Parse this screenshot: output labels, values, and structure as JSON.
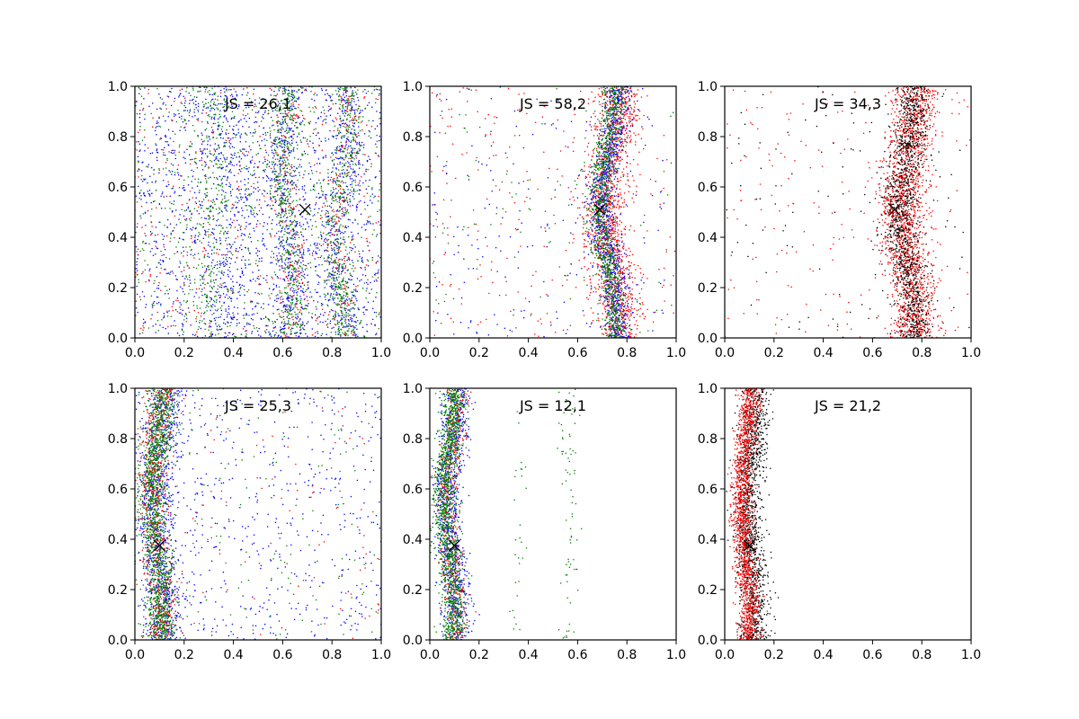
{
  "chart_data": [
    {
      "type": "scatter",
      "annotation": "JS = 26,1",
      "xlim": [
        0,
        1
      ],
      "ylim": [
        0,
        1
      ],
      "xticks": [
        "0.0",
        "0.2",
        "0.4",
        "0.6",
        "0.8",
        "1.0"
      ],
      "yticks": [
        "0.0",
        "0.2",
        "0.4",
        "0.6",
        "0.8",
        "1.0"
      ],
      "marker": {
        "x": 0.69,
        "y": 0.51,
        "symbol": "x",
        "color": "#000000"
      },
      "series": [
        {
          "color": "#0000ff",
          "distribution": [
            {
              "kind": "uniform",
              "count": 1500
            },
            {
              "kind": "band",
              "center": 0.38,
              "width": 0.05,
              "amp": 0.02,
              "count": 250
            },
            {
              "kind": "band",
              "center": 0.62,
              "width": 0.035,
              "amp": 0.025,
              "count": 350
            },
            {
              "kind": "band",
              "center": 0.84,
              "width": 0.035,
              "amp": 0.03,
              "count": 350
            }
          ]
        },
        {
          "color": "#ff0000",
          "distribution": [
            {
              "kind": "uniform",
              "count": 450
            },
            {
              "kind": "band",
              "center": 0.62,
              "width": 0.03,
              "amp": 0.025,
              "count": 150
            },
            {
              "kind": "band",
              "center": 0.84,
              "width": 0.03,
              "amp": 0.03,
              "count": 150
            }
          ]
        },
        {
          "color": "#008000",
          "distribution": [
            {
              "kind": "uniform",
              "count": 700
            },
            {
              "kind": "band",
              "center": 0.32,
              "width": 0.04,
              "amp": 0.02,
              "count": 300
            },
            {
              "kind": "band",
              "center": 0.62,
              "width": 0.03,
              "amp": 0.025,
              "count": 450
            },
            {
              "kind": "band",
              "center": 0.84,
              "width": 0.03,
              "amp": 0.03,
              "count": 450
            }
          ]
        }
      ]
    },
    {
      "type": "scatter",
      "annotation": "JS = 58,2",
      "xlim": [
        0,
        1
      ],
      "ylim": [
        0,
        1
      ],
      "xticks": [
        "0.0",
        "0.2",
        "0.4",
        "0.6",
        "0.8",
        "1.0"
      ],
      "yticks": [
        "0.0",
        "0.2",
        "0.4",
        "0.6",
        "0.8",
        "1.0"
      ],
      "marker": {
        "x": 0.69,
        "y": 0.51,
        "symbol": "x",
        "color": "#000000"
      },
      "series": [
        {
          "color": "#ff0000",
          "distribution": [
            {
              "kind": "uniform",
              "count": 250
            },
            {
              "kind": "band",
              "center": 0.74,
              "width": 0.045,
              "amp": 0.03,
              "count": 1500
            }
          ]
        },
        {
          "color": "#0000ff",
          "distribution": [
            {
              "kind": "uniform",
              "count": 200
            },
            {
              "kind": "band",
              "center": 0.73,
              "width": 0.03,
              "amp": 0.03,
              "count": 1000
            }
          ]
        },
        {
          "color": "#008000",
          "distribution": [
            {
              "kind": "uniform",
              "count": 120
            },
            {
              "kind": "band",
              "center": 0.72,
              "width": 0.025,
              "amp": 0.03,
              "count": 1000
            }
          ]
        }
      ]
    },
    {
      "type": "scatter",
      "annotation": "JS = 34,3",
      "xlim": [
        0,
        1
      ],
      "ylim": [
        0,
        1
      ],
      "xticks": [
        "0.0",
        "0.2",
        "0.4",
        "0.6",
        "0.8",
        "1.0"
      ],
      "yticks": [
        "0.0",
        "0.2",
        "0.4",
        "0.6",
        "0.8",
        "1.0"
      ],
      "marker": {
        "x": 0.69,
        "y": 0.51,
        "symbol": "x",
        "color": "#000000"
      },
      "series": [
        {
          "color": "#ff0000",
          "distribution": [
            {
              "kind": "uniform",
              "count": 220
            },
            {
              "kind": "band",
              "center": 0.75,
              "width": 0.045,
              "amp": 0.03,
              "count": 1800
            }
          ]
        },
        {
          "color": "#000000",
          "distribution": [
            {
              "kind": "uniform",
              "count": 120
            },
            {
              "kind": "band",
              "center": 0.74,
              "width": 0.035,
              "amp": 0.03,
              "count": 1200
            }
          ]
        }
      ]
    },
    {
      "type": "scatter",
      "annotation": "JS = 25,3",
      "xlim": [
        0,
        1
      ],
      "ylim": [
        0,
        1
      ],
      "xticks": [
        "0.0",
        "0.2",
        "0.4",
        "0.6",
        "0.8",
        "1.0"
      ],
      "yticks": [
        "0.0",
        "0.2",
        "0.4",
        "0.6",
        "0.8",
        "1.0"
      ],
      "marker": {
        "x": 0.1,
        "y": 0.375,
        "symbol": "x",
        "color": "#000000"
      },
      "series": [
        {
          "color": "#0000ff",
          "distribution": [
            {
              "kind": "uniform",
              "count": 600
            },
            {
              "kind": "band",
              "center": 0.1,
              "width": 0.04,
              "amp": 0.02,
              "count": 1000
            }
          ]
        },
        {
          "color": "#ff0000",
          "distribution": [
            {
              "kind": "uniform",
              "count": 120
            },
            {
              "kind": "band",
              "center": 0.09,
              "width": 0.03,
              "amp": 0.02,
              "count": 700
            }
          ]
        },
        {
          "color": "#008000",
          "distribution": [
            {
              "kind": "uniform",
              "count": 150
            },
            {
              "kind": "band",
              "center": 0.09,
              "width": 0.03,
              "amp": 0.02,
              "count": 1400
            }
          ]
        }
      ]
    },
    {
      "type": "scatter",
      "annotation": "JS = 12,1",
      "xlim": [
        0,
        1
      ],
      "ylim": [
        0,
        1
      ],
      "xticks": [
        "0.0",
        "0.2",
        "0.4",
        "0.6",
        "0.8",
        "1.0"
      ],
      "yticks": [
        "0.0",
        "0.2",
        "0.4",
        "0.6",
        "0.8",
        "1.0"
      ],
      "marker": {
        "x": 0.1,
        "y": 0.375,
        "symbol": "x",
        "color": "#000000"
      },
      "series": [
        {
          "color": "#0000ff",
          "distribution": [
            {
              "kind": "band",
              "center": 0.09,
              "width": 0.028,
              "amp": 0.02,
              "count": 1000
            }
          ]
        },
        {
          "color": "#ff0000",
          "distribution": [
            {
              "kind": "band",
              "center": 0.09,
              "width": 0.025,
              "amp": 0.02,
              "count": 500
            }
          ]
        },
        {
          "color": "#008000",
          "distribution": [
            {
              "kind": "band",
              "center": 0.08,
              "width": 0.025,
              "amp": 0.02,
              "count": 1400
            },
            {
              "kind": "band",
              "center": 0.36,
              "width": 0.015,
              "amp": 0.01,
              "count": 30
            },
            {
              "kind": "band",
              "center": 0.57,
              "width": 0.02,
              "amp": 0.01,
              "count": 80
            }
          ]
        }
      ]
    },
    {
      "type": "scatter",
      "annotation": "JS = 21,2",
      "xlim": [
        0,
        1
      ],
      "ylim": [
        0,
        1
      ],
      "xticks": [
        "0.0",
        "0.2",
        "0.4",
        "0.6",
        "0.8",
        "1.0"
      ],
      "yticks": [
        "0.0",
        "0.2",
        "0.4",
        "0.6",
        "0.8",
        "1.0"
      ],
      "marker": {
        "x": 0.1,
        "y": 0.375,
        "symbol": "x",
        "color": "#000000"
      },
      "series": [
        {
          "color": "#000000",
          "distribution": [
            {
              "kind": "band",
              "center": 0.11,
              "width": 0.03,
              "amp": 0.015,
              "count": 1400
            }
          ]
        },
        {
          "color": "#ff0000",
          "distribution": [
            {
              "kind": "band",
              "center": 0.085,
              "width": 0.022,
              "amp": 0.015,
              "count": 1500
            }
          ]
        }
      ]
    }
  ]
}
